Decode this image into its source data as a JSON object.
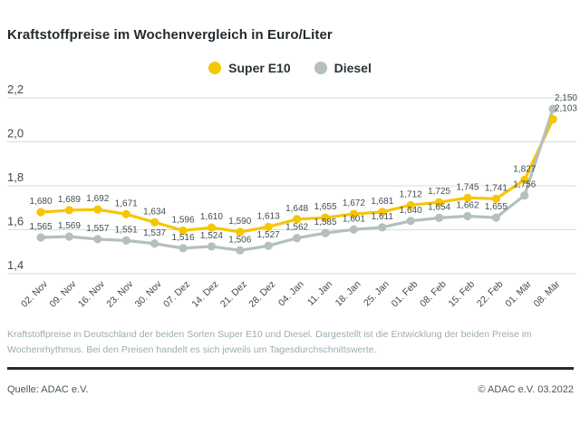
{
  "title": "Kraftstoffpreise im Wochenvergleich in Euro/Liter",
  "chart_data": {
    "type": "line",
    "title": "Kraftstoffpreise im Wochenvergleich in Euro/Liter",
    "categories": [
      "02. Nov",
      "09. Nov",
      "16. Nov",
      "23. Nov",
      "30. Nov",
      "07. Dez",
      "14. Dez",
      "21. Dez",
      "28. Dez",
      "04. Jan",
      "11. Jan",
      "18. Jan",
      "25. Jan",
      "01. Feb",
      "08. Feb",
      "15. Feb",
      "22. Feb",
      "01. Mär",
      "08. Mär"
    ],
    "series": [
      {
        "id": "super-e10",
        "name": "Super E10",
        "color": "#f6c600",
        "values": [
          1.68,
          1.689,
          1.692,
          1.671,
          1.634,
          1.596,
          1.61,
          1.59,
          1.613,
          1.648,
          1.655,
          1.672,
          1.681,
          1.712,
          1.725,
          1.745,
          1.741,
          1.827,
          2.103
        ]
      },
      {
        "id": "diesel",
        "name": "Diesel",
        "color": "#b4bfbe",
        "values": [
          1.565,
          1.569,
          1.557,
          1.551,
          1.537,
          1.516,
          1.524,
          1.506,
          1.527,
          1.562,
          1.585,
          1.601,
          1.611,
          1.64,
          1.654,
          1.662,
          1.655,
          1.756,
          2.15
        ]
      }
    ],
    "ylim": [
      1.4,
      2.2
    ],
    "yticks": [
      1.4,
      1.6,
      1.8,
      2.0,
      2.2
    ],
    "grid": true,
    "legend_position": "top",
    "value_labels": true,
    "decimal_separator": ","
  },
  "footnote": "Kraftstoffpreise in Deutschland der beiden Sorten Super E10 und Diesel. Dargestellt ist die Entwicklung der beiden Preise im Wochenrhythmus. Bei den Preisen handelt es sich jeweils um Tagesdurchschnittswerte.",
  "source": "Quelle: ADAC e.V.",
  "copyright": "© ADAC e.V. 03.2022"
}
